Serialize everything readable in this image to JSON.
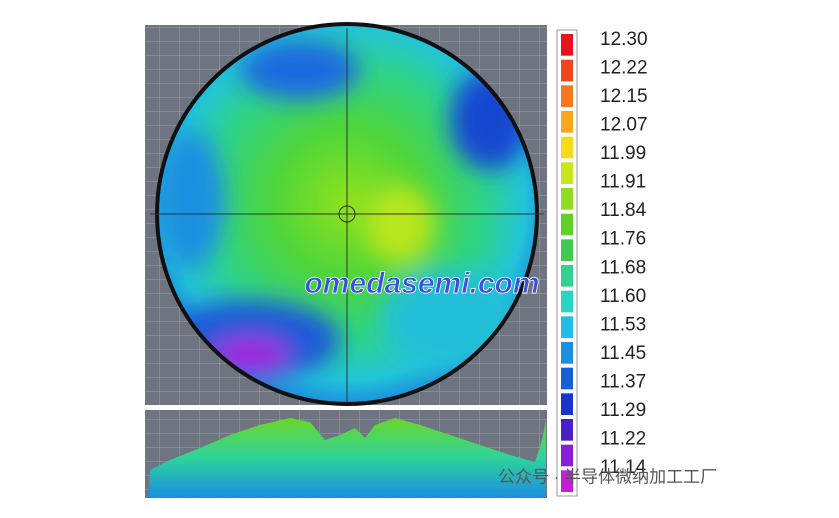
{
  "legend": {
    "labels": [
      "12.30",
      "12.22",
      "12.15",
      "12.07",
      "11.99",
      "11.91",
      "11.84",
      "11.76",
      "11.68",
      "11.60",
      "11.53",
      "11.45",
      "11.37",
      "11.29",
      "11.22",
      "11.14"
    ],
    "colors": [
      "#e8141c",
      "#f0461e",
      "#f47a20",
      "#f9a61a",
      "#f6dc18",
      "#c9e61d",
      "#8fdb1f",
      "#5fd22a",
      "#3fcb4e",
      "#2fd28e",
      "#26d6c4",
      "#20bde6",
      "#1a90e0",
      "#1660d6",
      "#1636c8",
      "#4a1fc8",
      "#8a1fd0",
      "#c21fd8"
    ]
  },
  "watermark": {
    "site": "omedasemi.com",
    "account": "公众号 · 半导体微纳加工工厂"
  }
}
